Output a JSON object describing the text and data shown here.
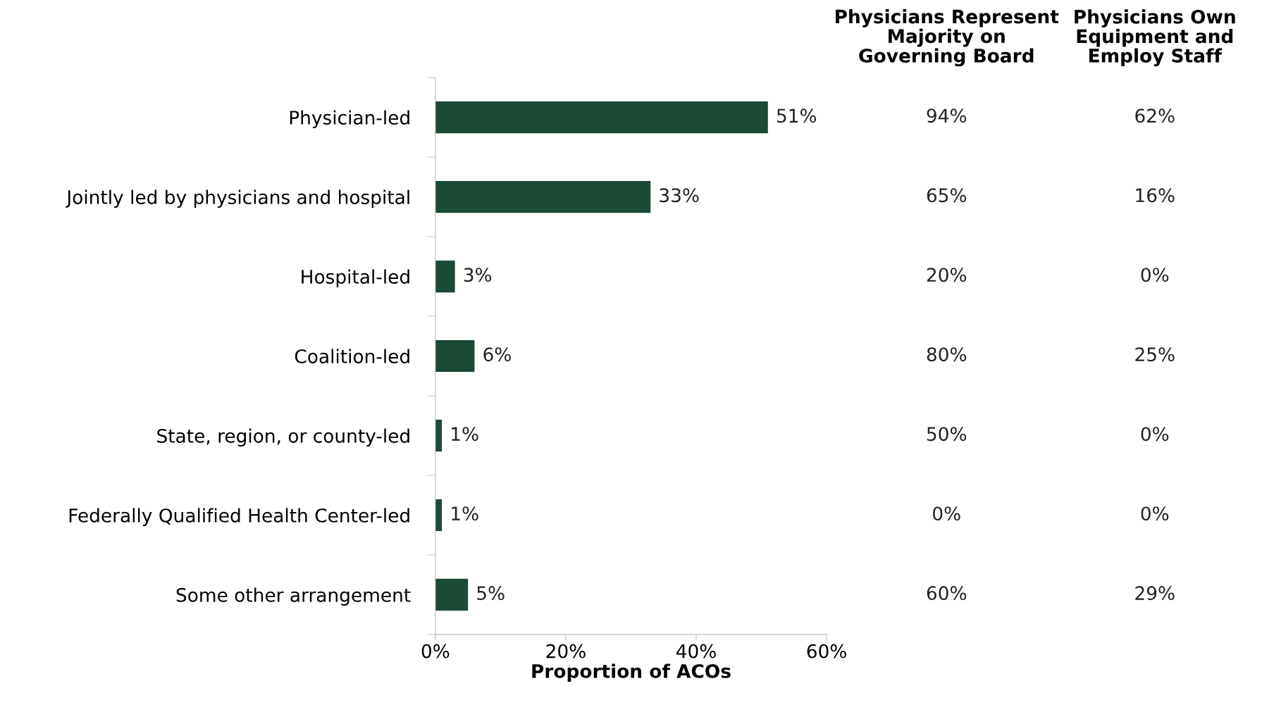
{
  "chart_data": [
    {
      "type": "bar",
      "orientation": "horizontal",
      "xlabel": "Proportion of ACOs",
      "categories": [
        "Physician-led",
        "Jointly led by physicians and hospital",
        "Hospital-led",
        "Coalition-led",
        "State, region, or county-led",
        "Federally Qualified Health Center-led",
        "Some other arrangement"
      ],
      "values": [
        51,
        33,
        3,
        6,
        1,
        1,
        5
      ],
      "color": "#1b4a35",
      "value_labels": [
        "51%",
        "33%",
        "3%",
        "6%",
        "1%",
        "1%",
        "5%"
      ],
      "xlim": [
        0,
        60
      ],
      "xticks": [
        {
          "value": 0,
          "label": "0%"
        },
        {
          "value": 20,
          "label": "20%"
        },
        {
          "value": 40,
          "label": "40%"
        },
        {
          "value": 60,
          "label": "60%"
        }
      ],
      "grid": false,
      "legend": false
    },
    {
      "type": "other",
      "title": "Physicians Represent\nMajority on\nGoverning Board",
      "annotations": [
        "94%",
        "65%",
        "20%",
        "80%",
        "50%",
        "0%",
        "60%"
      ]
    },
    {
      "type": "other",
      "title": "Physicians Own\nEquipment and\nEmploy Staff",
      "annotations": [
        "62%",
        "16%",
        "0%",
        "25%",
        "0%",
        "0%",
        "29%"
      ]
    }
  ]
}
